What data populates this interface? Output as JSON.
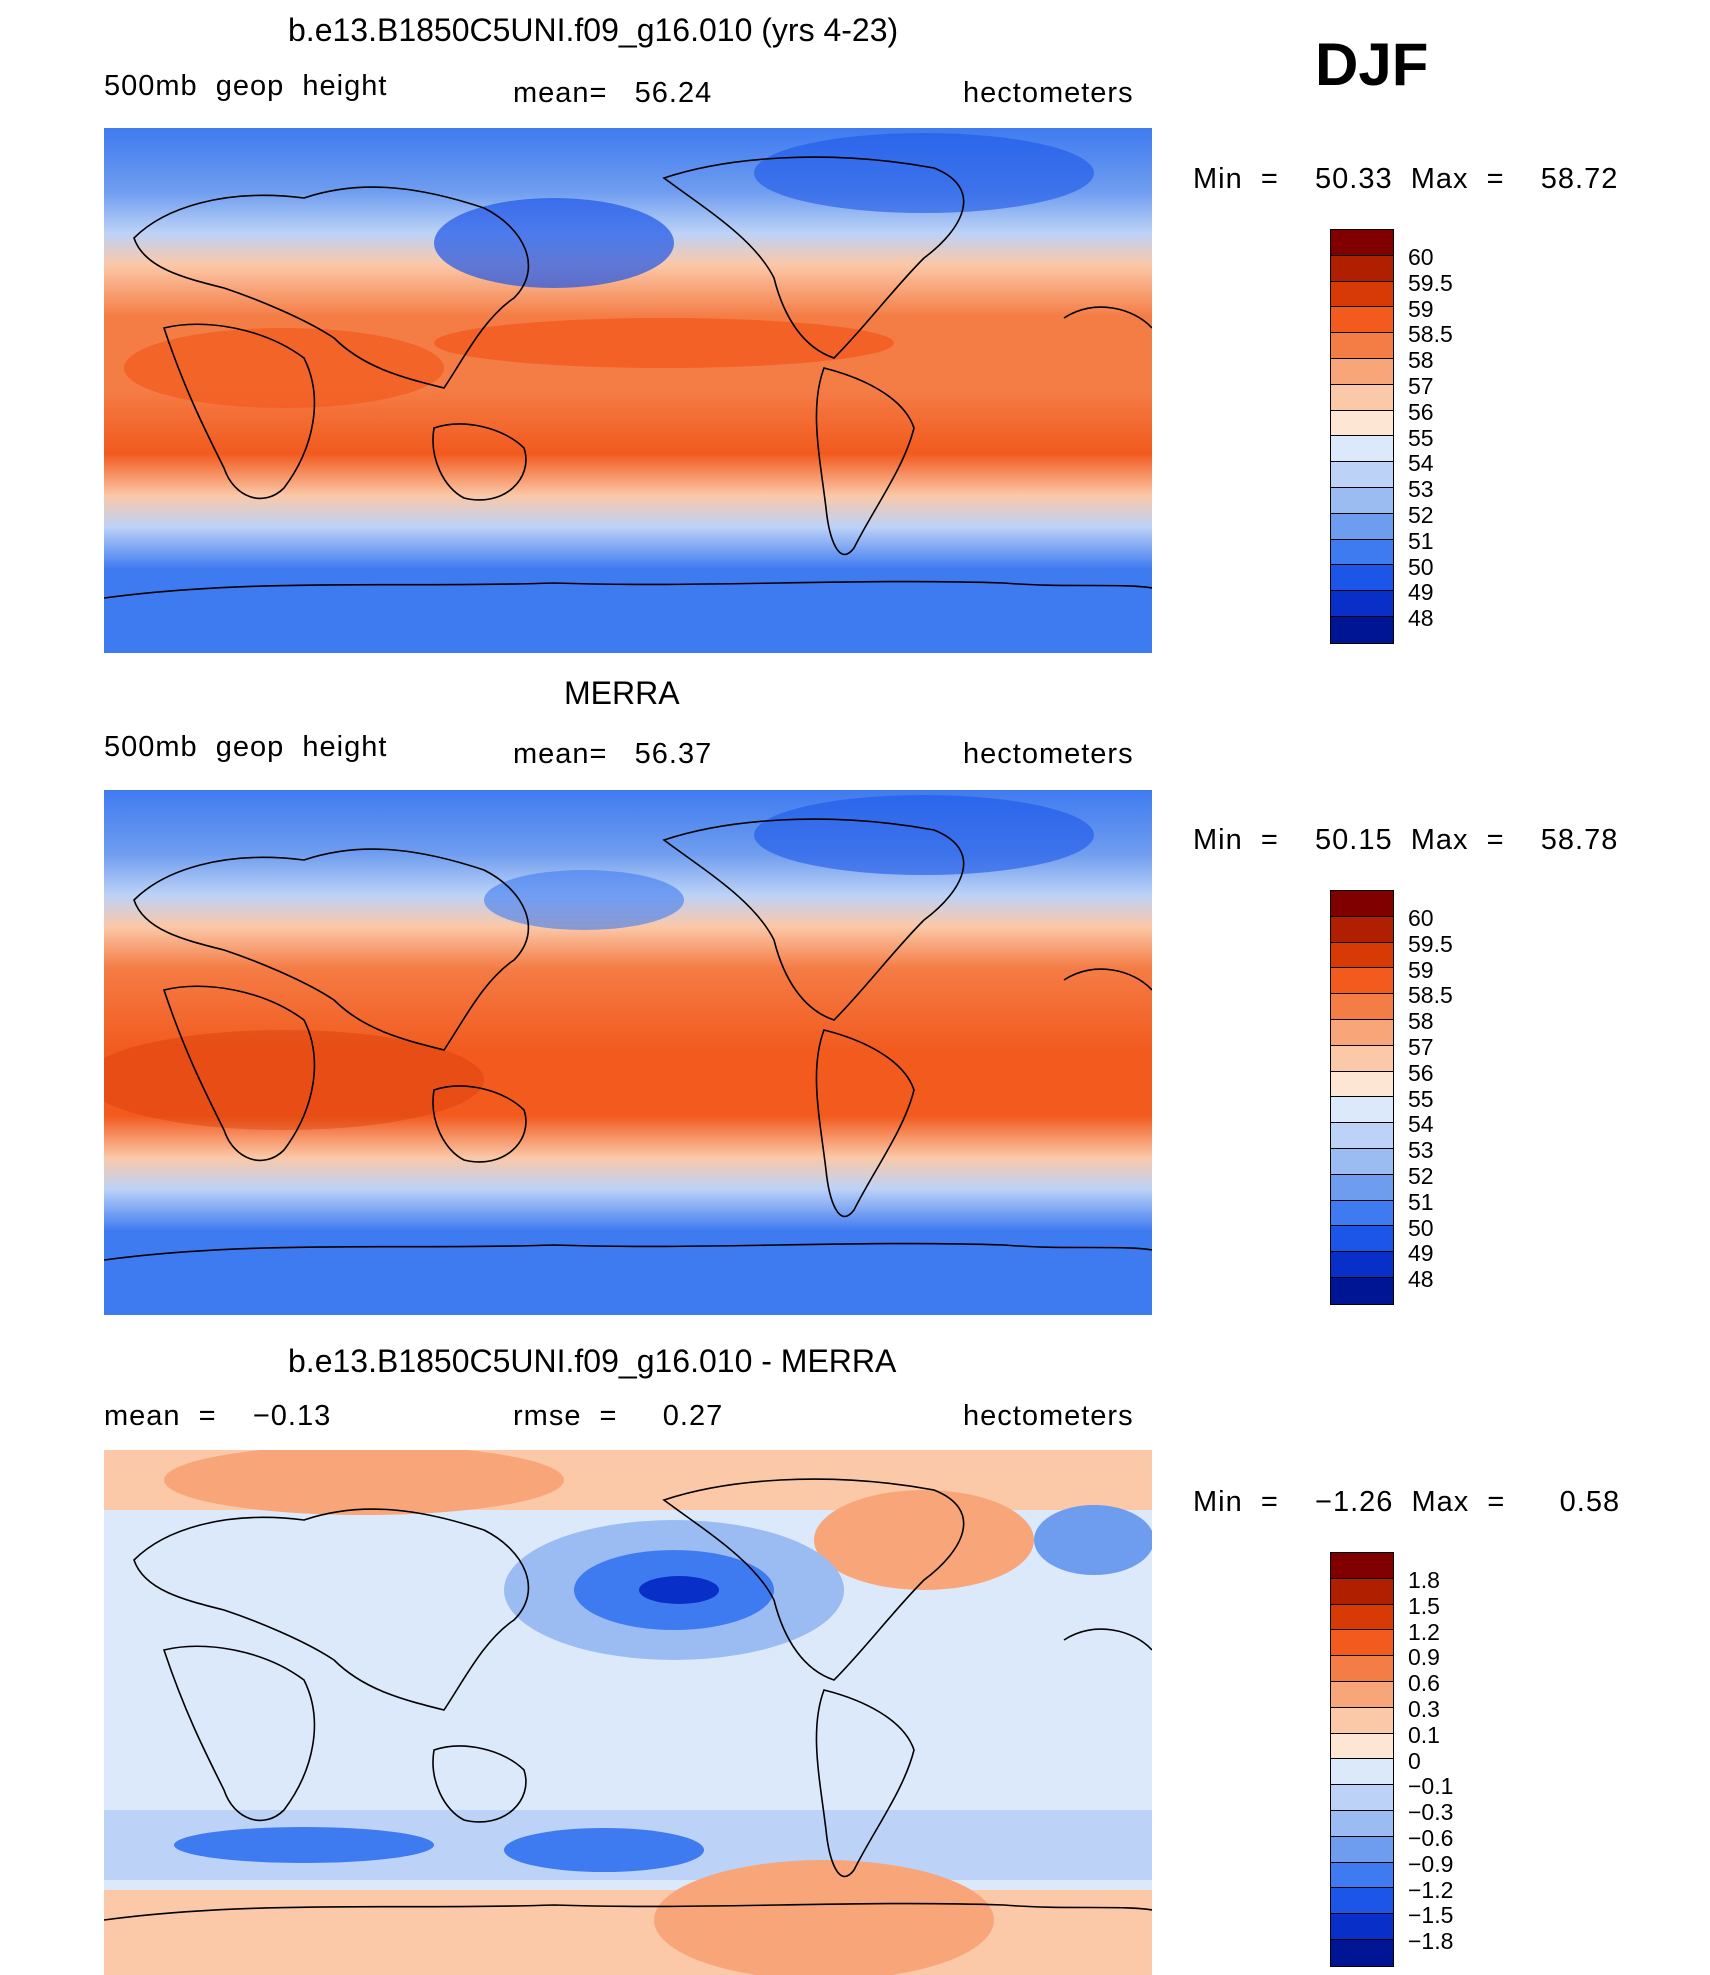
{
  "season": "DJF",
  "panels": [
    {
      "title": "b.e13.B1850C5UNI.f09_g16.010 (yrs 4-23)",
      "left_label": "500mb  geop  height",
      "center_label": "mean=   56.24",
      "units": "hectometers",
      "minmax": "Min  =    50.33  Max  =    58.72",
      "colorbar": {
        "ticks": [
          "60",
          "59.5",
          "59",
          "58.5",
          "58",
          "57",
          "56",
          "55",
          "54",
          "53",
          "52",
          "51",
          "50",
          "49",
          "48"
        ],
        "colors": [
          "#800000",
          "#b02000",
          "#d83a05",
          "#f25a1e",
          "#f47c45",
          "#f8a57a",
          "#fbc8a8",
          "#fde6d4",
          "#dce9fb",
          "#bcd2f7",
          "#9bbbf3",
          "#6e9cef",
          "#3f7bf0",
          "#1c56e8",
          "#0830c8",
          "#001593"
        ]
      }
    },
    {
      "title": "MERRA",
      "left_label": "500mb  geop  height",
      "center_label": "mean=   56.37",
      "units": "hectometers",
      "minmax": "Min  =    50.15  Max  =    58.78",
      "colorbar": {
        "ticks": [
          "60",
          "59.5",
          "59",
          "58.5",
          "58",
          "57",
          "56",
          "55",
          "54",
          "53",
          "52",
          "51",
          "50",
          "49",
          "48"
        ],
        "colors": [
          "#800000",
          "#b02000",
          "#d83a05",
          "#f25a1e",
          "#f47c45",
          "#f8a57a",
          "#fbc8a8",
          "#fde6d4",
          "#dce9fb",
          "#bcd2f7",
          "#9bbbf3",
          "#6e9cef",
          "#3f7bf0",
          "#1c56e8",
          "#0830c8",
          "#001593"
        ]
      }
    },
    {
      "title": "b.e13.B1850C5UNI.f09_g16.010 - MERRA",
      "left_label": "mean  =    −0.13",
      "center_label": "rmse  =     0.27",
      "units": "hectometers",
      "minmax": "Min  =    −1.26  Max  =      0.58",
      "colorbar": {
        "ticks": [
          "1.8",
          "1.5",
          "1.2",
          "0.9",
          "0.6",
          "0.3",
          "0.1",
          "0",
          "−0.1",
          "−0.3",
          "−0.6",
          "−0.9",
          "−1.2",
          "−1.5",
          "−1.8"
        ],
        "colors": [
          "#800000",
          "#b02000",
          "#d83a05",
          "#f25a1e",
          "#f47c45",
          "#f8a57a",
          "#fbc8a8",
          "#fde6d4",
          "#dce9fb",
          "#bcd2f7",
          "#9bbbf3",
          "#6e9cef",
          "#3f7bf0",
          "#1c56e8",
          "#0830c8",
          "#001593"
        ]
      }
    }
  ]
}
